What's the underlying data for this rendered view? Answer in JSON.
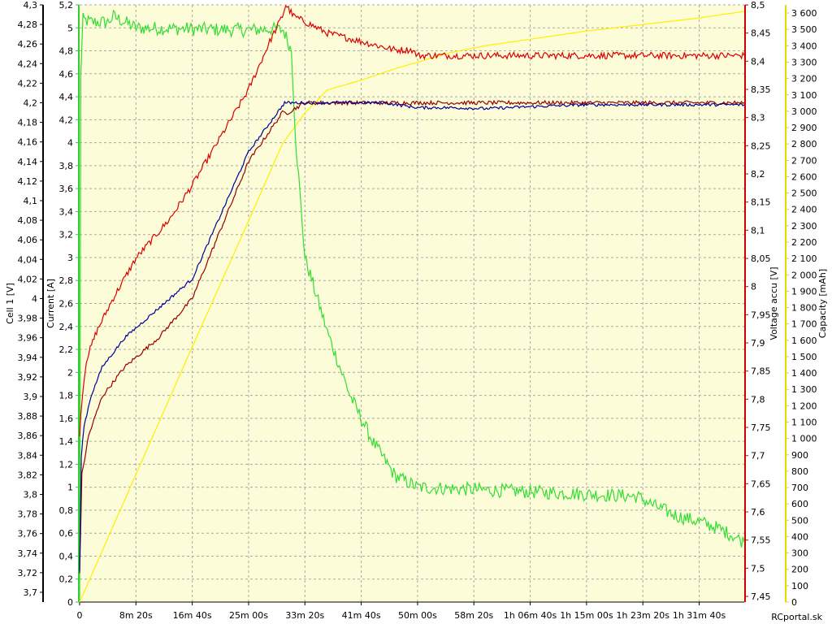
{
  "chart_data": {
    "type": "line",
    "x_unit": "seconds",
    "x_range": [
      0,
      5900
    ],
    "x_ticks": [
      0,
      500,
      1000,
      1500,
      2000,
      2500,
      3000,
      3500,
      4000,
      4500,
      5000,
      5500
    ],
    "x_tick_labels": [
      "0",
      "8m 20s",
      "16m 40s",
      "25m 00s",
      "33m 20s",
      "41m 40s",
      "50m 00s",
      "58m 20s",
      "1h 06m 40s",
      "1h 15m 00s",
      "1h 23m 20s",
      "1h 31m 40s"
    ],
    "grid": true,
    "background": "#fcfcd8",
    "credit": "RCportal.sk",
    "axes": {
      "cell": {
        "title": "Cell 1 [V]",
        "color": "#000000",
        "range": [
          3.69,
          4.3
        ],
        "ticks": [
          3.7,
          3.72,
          3.74,
          3.76,
          3.78,
          3.8,
          3.82,
          3.84,
          3.86,
          3.88,
          3.9,
          3.92,
          3.94,
          3.96,
          3.98,
          4,
          4.02,
          4.04,
          4.06,
          4.08,
          4.1,
          4.12,
          4.14,
          4.16,
          4.18,
          4.2,
          4.22,
          4.24,
          4.26,
          4.28,
          4.3
        ],
        "tick_labels": [
          "3,7",
          "3,72",
          "3,74",
          "3,76",
          "3,78",
          "3,8",
          "3,82",
          "3,84",
          "3,86",
          "3,88",
          "3,9",
          "3,92",
          "3,94",
          "3,96",
          "3,98",
          "4",
          "4,02",
          "4,04",
          "4,06",
          "4,08",
          "4,1",
          "4,12",
          "4,14",
          "4,16",
          "4,18",
          "4,2",
          "4,22",
          "4,24",
          "4,26",
          "4,28",
          "4,3"
        ]
      },
      "current": {
        "title": "Current [A]",
        "color": "#33cc33",
        "range": [
          0,
          5.2
        ],
        "ticks": [
          0,
          0.2,
          0.4,
          0.6,
          0.8,
          1,
          1.2,
          1.4,
          1.6,
          1.8,
          2,
          2.2,
          2.4,
          2.6,
          2.8,
          3,
          3.2,
          3.4,
          3.6,
          3.8,
          4,
          4.2,
          4.4,
          4.6,
          4.8,
          5,
          5.2
        ],
        "tick_labels": [
          "0",
          "0,2",
          "0,4",
          "0,6",
          "0,8",
          "1",
          "1,2",
          "1,4",
          "1,6",
          "1,8",
          "2",
          "2,2",
          "2,4",
          "2,6",
          "2,8",
          "3",
          "3,2",
          "3,4",
          "3,6",
          "3,8",
          "4",
          "4,2",
          "4,4",
          "4,6",
          "4,8",
          "5",
          "5,2"
        ]
      },
      "voltage": {
        "title": "Voltage accu [V]",
        "color": "#cc0000",
        "range": [
          7.44,
          8.5
        ],
        "ticks": [
          7.45,
          7.5,
          7.55,
          7.6,
          7.65,
          7.7,
          7.75,
          7.8,
          7.85,
          7.9,
          7.95,
          8,
          8.05,
          8.1,
          8.15,
          8.2,
          8.25,
          8.3,
          8.35,
          8.4,
          8.45,
          8.5
        ],
        "tick_labels": [
          "7,45",
          "7,5",
          "7,55",
          "7,6",
          "7,65",
          "7,7",
          "7,75",
          "7,8",
          "7,85",
          "7,9",
          "7,95",
          "8",
          "8,05",
          "8,1",
          "8,15",
          "8,2",
          "8,25",
          "8,3",
          "8,35",
          "8,4",
          "8,45",
          "8,5"
        ]
      },
      "capacity": {
        "title": "Capacity [mAh]",
        "color": "#e6d800",
        "range": [
          0,
          3650
        ],
        "ticks": [
          0,
          100,
          200,
          300,
          400,
          500,
          600,
          700,
          800,
          900,
          1000,
          1100,
          1200,
          1300,
          1400,
          1500,
          1600,
          1700,
          1800,
          1900,
          2000,
          2100,
          2200,
          2300,
          2400,
          2500,
          2600,
          2700,
          2800,
          2900,
          3000,
          3100,
          3200,
          3300,
          3400,
          3500,
          3600
        ],
        "tick_labels": [
          "0",
          "100",
          "200",
          "300",
          "400",
          "500",
          "600",
          "700",
          "800",
          "900",
          "1 000",
          "1 100",
          "1 200",
          "1 300",
          "1 400",
          "1 500",
          "1 600",
          "1 700",
          "1 800",
          "1 900",
          "2 000",
          "2 100",
          "2 200",
          "2 300",
          "2 400",
          "2 500",
          "2 600",
          "2 700",
          "2 800",
          "2 900",
          "3 000",
          "3 100",
          "3 200",
          "3 300",
          "3 400",
          "3 500",
          "3 600"
        ]
      }
    },
    "series": [
      {
        "axis": "capacity",
        "color": "#ffee00",
        "noise": 0,
        "x": [
          0,
          500,
          1000,
          1500,
          1800,
          2000,
          2200,
          2500,
          2800,
          3000,
          3300,
          3600,
          4000,
          4500,
          5000,
          5500,
          5900
        ],
        "y": [
          0,
          780,
          1560,
          2330,
          2800,
          2990,
          3130,
          3190,
          3260,
          3300,
          3360,
          3400,
          3440,
          3490,
          3530,
          3570,
          3610
        ]
      },
      {
        "axis": "current",
        "color": "#33dd33",
        "noise": 0.06,
        "x": [
          0,
          10,
          30,
          100,
          250,
          300,
          500,
          1000,
          1500,
          1700,
          1810,
          1880,
          1920,
          2000,
          2200,
          2400,
          2600,
          2800,
          3000,
          3500,
          4000,
          4500,
          4950,
          5100,
          5300,
          5500,
          5650,
          5800,
          5900
        ],
        "y": [
          0,
          4.6,
          5.07,
          5.05,
          5.05,
          5.1,
          5.0,
          4.99,
          4.98,
          4.99,
          4.98,
          4.8,
          4.0,
          3.0,
          2.35,
          1.8,
          1.4,
          1.1,
          1.0,
          0.98,
          0.96,
          0.94,
          0.92,
          0.84,
          0.75,
          0.7,
          0.65,
          0.58,
          0.52
        ]
      },
      {
        "axis": "voltage",
        "color": "#dd0000",
        "noise": 0.006,
        "x": [
          0,
          20,
          60,
          150,
          300,
          500,
          800,
          1000,
          1500,
          1700,
          1800,
          1830,
          1900,
          2000,
          2200,
          2400,
          2600,
          2800,
          2950,
          3000,
          3300,
          3600,
          4000,
          4500,
          5000,
          5500,
          5900
        ],
        "y": [
          7.74,
          7.8,
          7.87,
          7.92,
          7.98,
          8.05,
          8.12,
          8.18,
          8.35,
          8.44,
          8.48,
          8.5,
          8.48,
          8.47,
          8.45,
          8.44,
          8.43,
          8.42,
          8.42,
          8.41,
          8.41,
          8.41,
          8.41,
          8.41,
          8.41,
          8.41,
          8.41
        ]
      },
      {
        "axis": "cell",
        "color": "#990000",
        "noise": 0.002,
        "x": [
          0,
          20,
          80,
          200,
          400,
          700,
          1000,
          1500,
          1800,
          1850,
          2000,
          2200,
          2400,
          2500,
          3000,
          3500,
          4000,
          4500,
          5000,
          5500,
          5900
        ],
        "y": [
          3.72,
          3.82,
          3.86,
          3.9,
          3.93,
          3.96,
          4.0,
          4.14,
          4.19,
          4.19,
          4.2,
          4.2,
          4.2,
          4.2,
          4.2,
          4.2,
          4.2,
          4.2,
          4.2,
          4.2,
          4.2
        ]
      },
      {
        "axis": "cell",
        "color": "#000099",
        "noise": 0.0015,
        "x": [
          0,
          15,
          40,
          100,
          200,
          400,
          700,
          1000,
          1500,
          1820,
          1850,
          2100,
          2400,
          2500,
          2700,
          3000,
          3300,
          3600,
          4000,
          4500,
          5000,
          5500,
          5900
        ],
        "y": [
          3.72,
          3.84,
          3.87,
          3.9,
          3.93,
          3.96,
          3.99,
          4.02,
          4.15,
          4.2,
          4.2,
          4.2,
          4.2,
          4.2,
          4.2,
          4.195,
          4.195,
          4.194,
          4.196,
          4.198,
          4.198,
          4.198,
          4.198
        ]
      }
    ]
  }
}
